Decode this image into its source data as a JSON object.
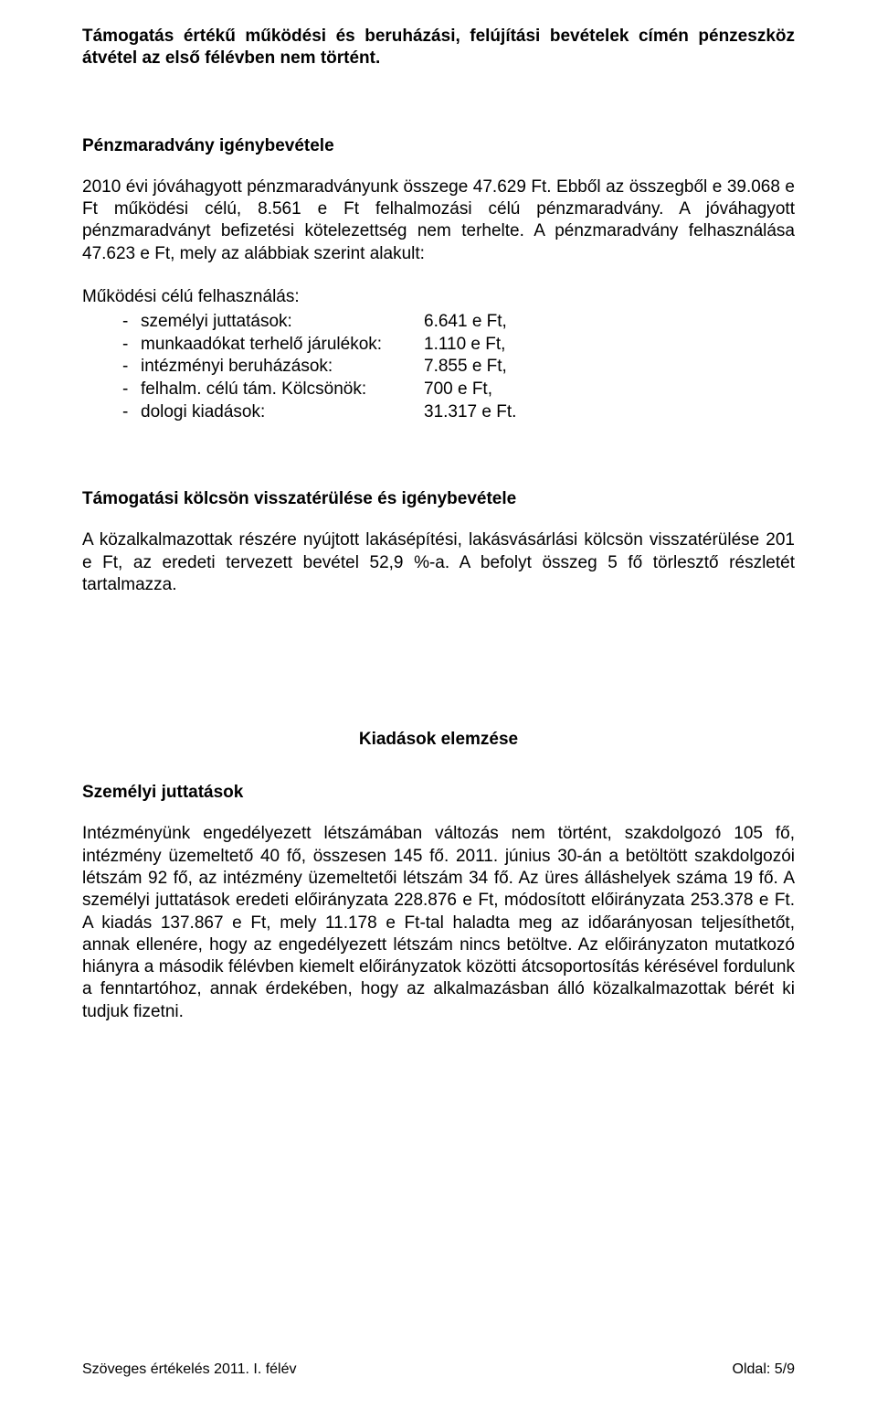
{
  "p1": "Támogatás értékű működési és beruházási, felújítási bevételek címén pénzeszköz átvétel az első félévben nem történt.",
  "h1": "Pénzmaradvány igénybevétele",
  "p2": "2010 évi jóváhagyott pénzmaradványunk összege 47.629 Ft. Ebből az összegből e 39.068 e Ft működési célú, 8.561 e Ft felhalmozási célú pénzmaradvány. A jóváhagyott pénzmaradványt befizetési kötelezettség nem terhelte. A pénzmaradvány felhasználása 47.623 e Ft, mely az alábbiak szerint alakult:",
  "list_intro": "Működési célú felhasználás:",
  "items": [
    {
      "label": "személyi juttatások:",
      "value": "6.641 e Ft,"
    },
    {
      "label": "munkaadókat terhelő járulékok:",
      "value": "1.110 e Ft,"
    },
    {
      "label": "intézményi beruházások:",
      "value": "7.855 e Ft,"
    },
    {
      "label": "felhalm. célú tám. Kölcsönök:",
      "value": "  700 e Ft,"
    },
    {
      "label": "dologi kiadások:",
      "value": "31.317 e Ft."
    }
  ],
  "h2": "Támogatási kölcsön visszatérülése és igénybevétele",
  "p3": "A közalkalmazottak részére nyújtott lakásépítési, lakásvásárlási kölcsön visszatérülése 201 e Ft, az eredeti tervezett bevétel 52,9 %-a.  A befolyt összeg 5 fő törlesztő részletét tartalmazza.",
  "h3": "Kiadások elemzése",
  "h4": "Személyi juttatások",
  "p4": "Intézményünk engedélyezett létszámában változás nem történt,  szakdolgozó 105 fő, intézmény üzemeltető 40 fő, összesen 145 fő. 2011. június 30-án a betöltött szakdolgozói létszám 92 fő, az intézmény üzemeltetői létszám 34 fő. Az üres álláshelyek száma 19 fő.  A személyi juttatások eredeti előirányzata 228.876 e Ft, módosított előirányzata 253.378 e Ft. A kiadás 137.867 e Ft, mely 11.178 e Ft-tal haladta meg az időarányosan teljesíthetőt, annak ellenére, hogy az engedélyezett létszám nincs betöltve. Az előirányzaton mutatkozó hiányra a második félévben kiemelt előirányzatok közötti átcsoportosítás kérésével fordulunk a fenntartóhoz, annak érdekében, hogy az alkalmazásban álló közalkalmazottak bérét ki tudjuk fizetni.",
  "footer_left": "Szöveges értékelés 2011. I. félév",
  "footer_right": "Oldal: 5/9"
}
